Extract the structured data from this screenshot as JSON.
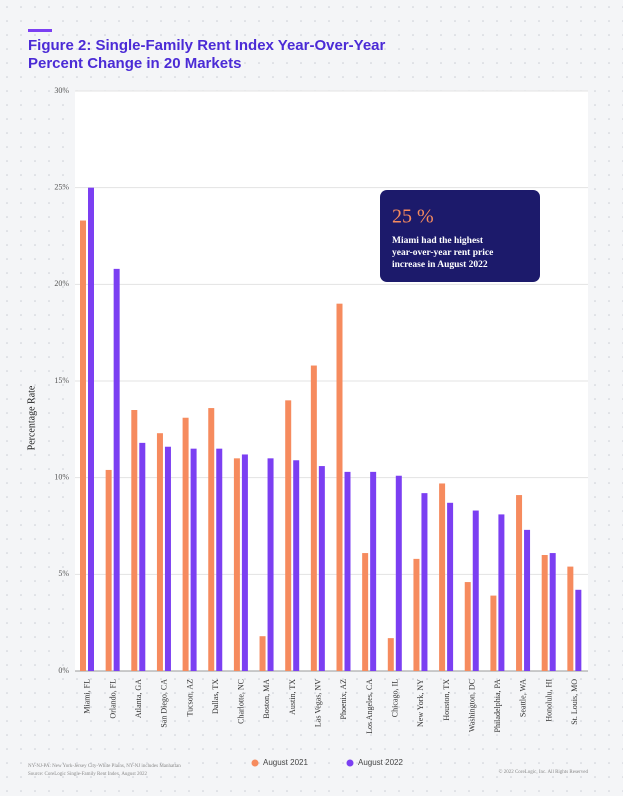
{
  "chart_data": {
    "type": "bar",
    "title": "Figure 2: Single-Family Rent Index Year-Over-Year",
    "subtitle": "Percent Change in 20 Markets",
    "y_label": "Percentage Rate",
    "categories": [
      "Miami, FL",
      "Orlando, FL",
      "Atlanta, GA",
      "San Diego, CA",
      "Tucson, AZ",
      "Dallas, TX",
      "Charlotte, NC",
      "Boston, MA",
      "Austin, TX",
      "Las Vegas, NV",
      "Phoenix, AZ",
      "Los Angeles, CA",
      "Chicago, IL",
      "New York, NY",
      "Houston, TX",
      "Washington, DC",
      "Philadelphia, PA",
      "Seattle, WA",
      "Honolulu, HI",
      "St. Louis, MO"
    ],
    "series": [
      {
        "name": "August 2021",
        "color": "#f68b5e",
        "values": [
          23.3,
          10.4,
          13.5,
          12.3,
          13.1,
          13.6,
          11.0,
          1.8,
          14.0,
          15.8,
          19.0,
          6.1,
          1.7,
          5.8,
          9.7,
          4.6,
          3.9,
          9.1,
          6.0,
          5.4
        ]
      },
      {
        "name": "August 2022",
        "color": "#7b3ff2",
        "values": [
          25.0,
          20.8,
          11.8,
          11.6,
          11.5,
          11.5,
          11.2,
          11.0,
          10.9,
          10.6,
          10.3,
          10.3,
          10.1,
          9.2,
          8.7,
          8.3,
          8.1,
          7.3,
          6.1,
          4.2
        ]
      }
    ],
    "ylim": [
      0,
      30
    ],
    "yticks": [
      {
        "value": 0,
        "label": "0%"
      },
      {
        "value": 5,
        "label": "5%"
      },
      {
        "value": 10,
        "label": "10%"
      },
      {
        "value": 15,
        "label": "15%"
      },
      {
        "value": 20,
        "label": "20%"
      },
      {
        "value": 25,
        "label": "25%"
      },
      {
        "value": 30,
        "label": "30%"
      }
    ],
    "grid": true,
    "annotation": {
      "headline": "25 %",
      "lines": [
        "Miami had the highest",
        "year-over-year rent price",
        "increase in August 2022"
      ]
    },
    "footnotes": [
      "NY-NJ-PA: New York-Jersey City-White Plains, NY-NJ includes Manhattan",
      "Source: CoreLogic Single-Family Rent Index, August 2022"
    ],
    "copyright": "© 2022 CoreLogic, Inc. All Rights Reserved"
  }
}
